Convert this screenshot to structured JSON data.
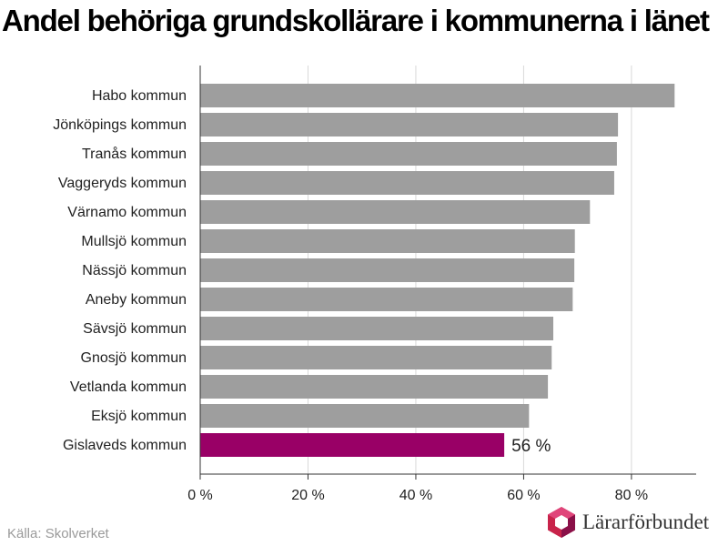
{
  "title": "Andel behöriga grundskollärare i kommunerna i länet",
  "source": "Källa: Skolverket",
  "logo_text": "Lärarförbundet",
  "colors": {
    "bar_default": "#9e9e9e",
    "bar_highlight": "#990066",
    "grid": "#d9d9d9",
    "axis": "#333333"
  },
  "chart_data": {
    "type": "bar",
    "orientation": "horizontal",
    "categories": [
      "Habo kommun",
      "Jönköpings kommun",
      "Tranås kommun",
      "Vaggeryds kommun",
      "Värnamo kommun",
      "Mullsjö kommun",
      "Nässjö kommun",
      "Aneby kommun",
      "Sävsjö kommun",
      "Gnosjö kommun",
      "Vetlanda kommun",
      "Eksjö kommun",
      "Gislaveds kommun"
    ],
    "values": [
      88,
      77.5,
      77.3,
      76.8,
      72.3,
      69.5,
      69.4,
      69.1,
      65.5,
      65.2,
      64.5,
      61,
      56.4
    ],
    "highlight_index": 12,
    "data_labels": [
      {
        "index": 12,
        "text": "56 %"
      }
    ],
    "x_ticks": [
      0,
      20,
      40,
      60,
      80
    ],
    "x_tick_labels": [
      "0 %",
      "20 %",
      "40 %",
      "60 %",
      "80 %"
    ],
    "xlim": [
      0,
      92
    ],
    "grid": true,
    "xlabel": "",
    "ylabel": ""
  }
}
